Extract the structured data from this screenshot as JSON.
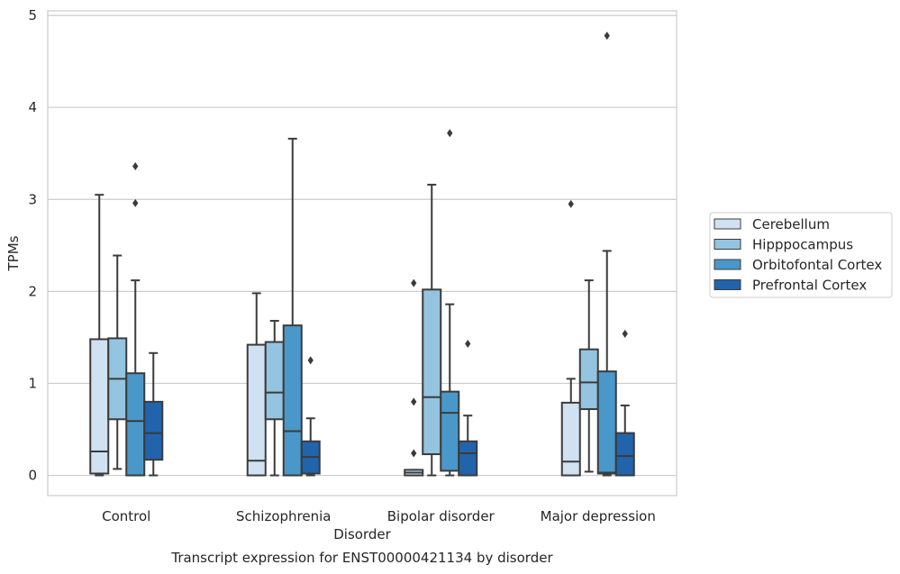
{
  "chart_data": {
    "type": "boxplot",
    "caption": "Transcript expression for ENST00000421134 by disorder",
    "xlabel": "Disorder",
    "ylabel": "TPMs",
    "ylim": [
      -0.22,
      5.05
    ],
    "yticks": [
      0,
      1,
      2,
      3,
      4,
      5
    ],
    "categories": [
      "Control",
      "Schizophrenia",
      "Bipolar disorder",
      "Major depression"
    ],
    "grid": "horizontal",
    "legend": "right",
    "series": [
      {
        "name": "Cerebellum",
        "color": "#d0e1f2",
        "boxes": [
          {
            "whislo": 0.0,
            "q1": 0.02,
            "med": 0.26,
            "q3": 1.48,
            "whishi": 3.05,
            "fliers": []
          },
          {
            "whislo": 0.0,
            "q1": 0.0,
            "med": 0.16,
            "q3": 1.42,
            "whishi": 1.98,
            "fliers": []
          },
          {
            "whislo": 0.0,
            "q1": 0.0,
            "med": 0.03,
            "q3": 0.06,
            "whishi": 0.06,
            "fliers": [
              0.24,
              0.8,
              2.09
            ]
          },
          {
            "whislo": 0.0,
            "q1": 0.0,
            "med": 0.15,
            "q3": 0.79,
            "whishi": 1.05,
            "fliers": [
              2.95
            ]
          }
        ]
      },
      {
        "name": "Hipppocampus",
        "color": "#94c4df",
        "boxes": [
          {
            "whislo": 0.07,
            "q1": 0.61,
            "med": 1.05,
            "q3": 1.49,
            "whishi": 2.39,
            "fliers": []
          },
          {
            "whislo": 0.0,
            "q1": 0.61,
            "med": 0.9,
            "q3": 1.45,
            "whishi": 1.68,
            "fliers": []
          },
          {
            "whislo": 0.0,
            "q1": 0.23,
            "med": 0.85,
            "q3": 2.02,
            "whishi": 3.16,
            "fliers": []
          },
          {
            "whislo": 0.04,
            "q1": 0.72,
            "med": 1.01,
            "q3": 1.37,
            "whishi": 2.12,
            "fliers": []
          }
        ]
      },
      {
        "name": "Orbitofontal Cortex",
        "color": "#4a98c9",
        "boxes": [
          {
            "whislo": 0.0,
            "q1": 0.0,
            "med": 0.59,
            "q3": 1.11,
            "whishi": 2.12,
            "fliers": [
              2.96,
              3.36
            ]
          },
          {
            "whislo": 0.0,
            "q1": 0.0,
            "med": 0.48,
            "q3": 1.63,
            "whishi": 3.66,
            "fliers": []
          },
          {
            "whislo": 0.0,
            "q1": 0.05,
            "med": 0.68,
            "q3": 0.91,
            "whishi": 1.86,
            "fliers": [
              3.72
            ]
          },
          {
            "whislo": 0.0,
            "q1": 0.02,
            "med": 0.03,
            "q3": 1.13,
            "whishi": 2.44,
            "fliers": [
              4.78
            ]
          }
        ]
      },
      {
        "name": "Prefrontal Cortex",
        "color": "#2164ab",
        "boxes": [
          {
            "whislo": 0.0,
            "q1": 0.17,
            "med": 0.46,
            "q3": 0.8,
            "whishi": 1.33,
            "fliers": []
          },
          {
            "whislo": 0.0,
            "q1": 0.02,
            "med": 0.2,
            "q3": 0.37,
            "whishi": 0.62,
            "fliers": [
              1.25
            ]
          },
          {
            "whislo": 0.0,
            "q1": 0.0,
            "med": 0.24,
            "q3": 0.37,
            "whishi": 0.65,
            "fliers": [
              1.43
            ]
          },
          {
            "whislo": 0.0,
            "q1": 0.0,
            "med": 0.21,
            "q3": 0.46,
            "whishi": 0.76,
            "fliers": [
              1.54
            ]
          }
        ]
      }
    ]
  }
}
